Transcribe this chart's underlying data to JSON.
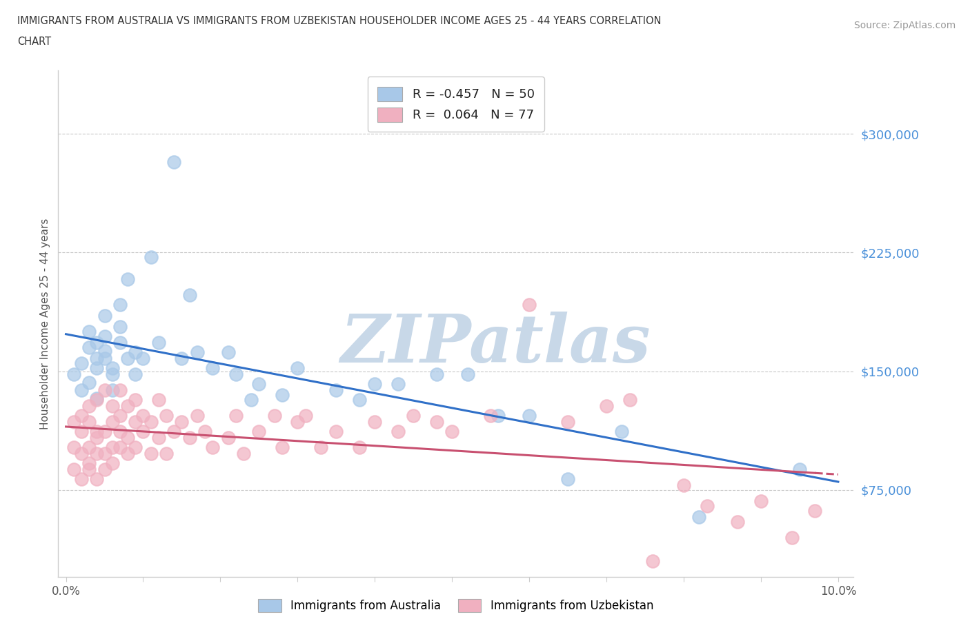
{
  "title_line1": "IMMIGRANTS FROM AUSTRALIA VS IMMIGRANTS FROM UZBEKISTAN HOUSEHOLDER INCOME AGES 25 - 44 YEARS CORRELATION",
  "title_line2": "CHART",
  "source_text": "Source: ZipAtlas.com",
  "ylabel": "Householder Income Ages 25 - 44 years",
  "xlim": [
    -0.001,
    0.102
  ],
  "ylim": [
    20000,
    340000
  ],
  "xticks": [
    0.0,
    0.01,
    0.02,
    0.03,
    0.04,
    0.05,
    0.06,
    0.07,
    0.08,
    0.09,
    0.1
  ],
  "xticklabels": [
    "0.0%",
    "",
    "",
    "",
    "",
    "",
    "",
    "",
    "",
    "",
    "10.0%"
  ],
  "yticks": [
    75000,
    150000,
    225000,
    300000
  ],
  "yticklabels": [
    "$75,000",
    "$150,000",
    "$225,000",
    "$300,000"
  ],
  "background_color": "#ffffff",
  "watermark_text": "ZIPatlas",
  "watermark_color": "#c8d8e8",
  "legend_R_australia": "-0.457",
  "legend_N_australia": "50",
  "legend_R_uzbekistan": "0.064",
  "legend_N_uzbekistan": "77",
  "australia_color": "#a8c8e8",
  "uzbekistan_color": "#f0b0c0",
  "australia_line_color": "#3070c8",
  "uzbekistan_line_color": "#c85070",
  "grid_color": "#c8c8c8",
  "australia_x": [
    0.001,
    0.002,
    0.002,
    0.003,
    0.003,
    0.003,
    0.004,
    0.004,
    0.004,
    0.004,
    0.005,
    0.005,
    0.005,
    0.005,
    0.006,
    0.006,
    0.006,
    0.007,
    0.007,
    0.007,
    0.008,
    0.008,
    0.009,
    0.009,
    0.01,
    0.011,
    0.012,
    0.014,
    0.015,
    0.016,
    0.017,
    0.019,
    0.021,
    0.022,
    0.024,
    0.025,
    0.028,
    0.03,
    0.035,
    0.038,
    0.04,
    0.043,
    0.048,
    0.052,
    0.056,
    0.06,
    0.065,
    0.072,
    0.082,
    0.095
  ],
  "australia_y": [
    148000,
    155000,
    138000,
    165000,
    175000,
    143000,
    168000,
    152000,
    158000,
    133000,
    172000,
    158000,
    185000,
    163000,
    148000,
    152000,
    138000,
    192000,
    168000,
    178000,
    208000,
    158000,
    162000,
    148000,
    158000,
    222000,
    168000,
    282000,
    158000,
    198000,
    162000,
    152000,
    162000,
    148000,
    132000,
    142000,
    135000,
    152000,
    138000,
    132000,
    142000,
    142000,
    148000,
    148000,
    122000,
    122000,
    82000,
    112000,
    58000,
    88000
  ],
  "uzbekistan_x": [
    0.001,
    0.001,
    0.001,
    0.002,
    0.002,
    0.002,
    0.002,
    0.003,
    0.003,
    0.003,
    0.003,
    0.003,
    0.004,
    0.004,
    0.004,
    0.004,
    0.004,
    0.005,
    0.005,
    0.005,
    0.005,
    0.006,
    0.006,
    0.006,
    0.006,
    0.007,
    0.007,
    0.007,
    0.007,
    0.008,
    0.008,
    0.008,
    0.009,
    0.009,
    0.009,
    0.01,
    0.01,
    0.011,
    0.011,
    0.012,
    0.012,
    0.013,
    0.013,
    0.014,
    0.015,
    0.016,
    0.017,
    0.018,
    0.019,
    0.021,
    0.022,
    0.023,
    0.025,
    0.027,
    0.028,
    0.03,
    0.031,
    0.033,
    0.035,
    0.038,
    0.04,
    0.043,
    0.045,
    0.048,
    0.05,
    0.055,
    0.06,
    0.065,
    0.07,
    0.073,
    0.076,
    0.08,
    0.083,
    0.087,
    0.09,
    0.094,
    0.097
  ],
  "uzbekistan_y": [
    102000,
    118000,
    88000,
    122000,
    98000,
    112000,
    82000,
    128000,
    102000,
    92000,
    118000,
    88000,
    132000,
    108000,
    112000,
    98000,
    82000,
    138000,
    112000,
    98000,
    88000,
    128000,
    102000,
    118000,
    92000,
    138000,
    112000,
    102000,
    122000,
    128000,
    108000,
    98000,
    118000,
    132000,
    102000,
    112000,
    122000,
    118000,
    98000,
    132000,
    108000,
    122000,
    98000,
    112000,
    118000,
    108000,
    122000,
    112000,
    102000,
    108000,
    122000,
    98000,
    112000,
    122000,
    102000,
    118000,
    122000,
    102000,
    112000,
    102000,
    118000,
    112000,
    122000,
    118000,
    112000,
    122000,
    192000,
    118000,
    128000,
    132000,
    30000,
    78000,
    65000,
    55000,
    68000,
    45000,
    62000
  ]
}
